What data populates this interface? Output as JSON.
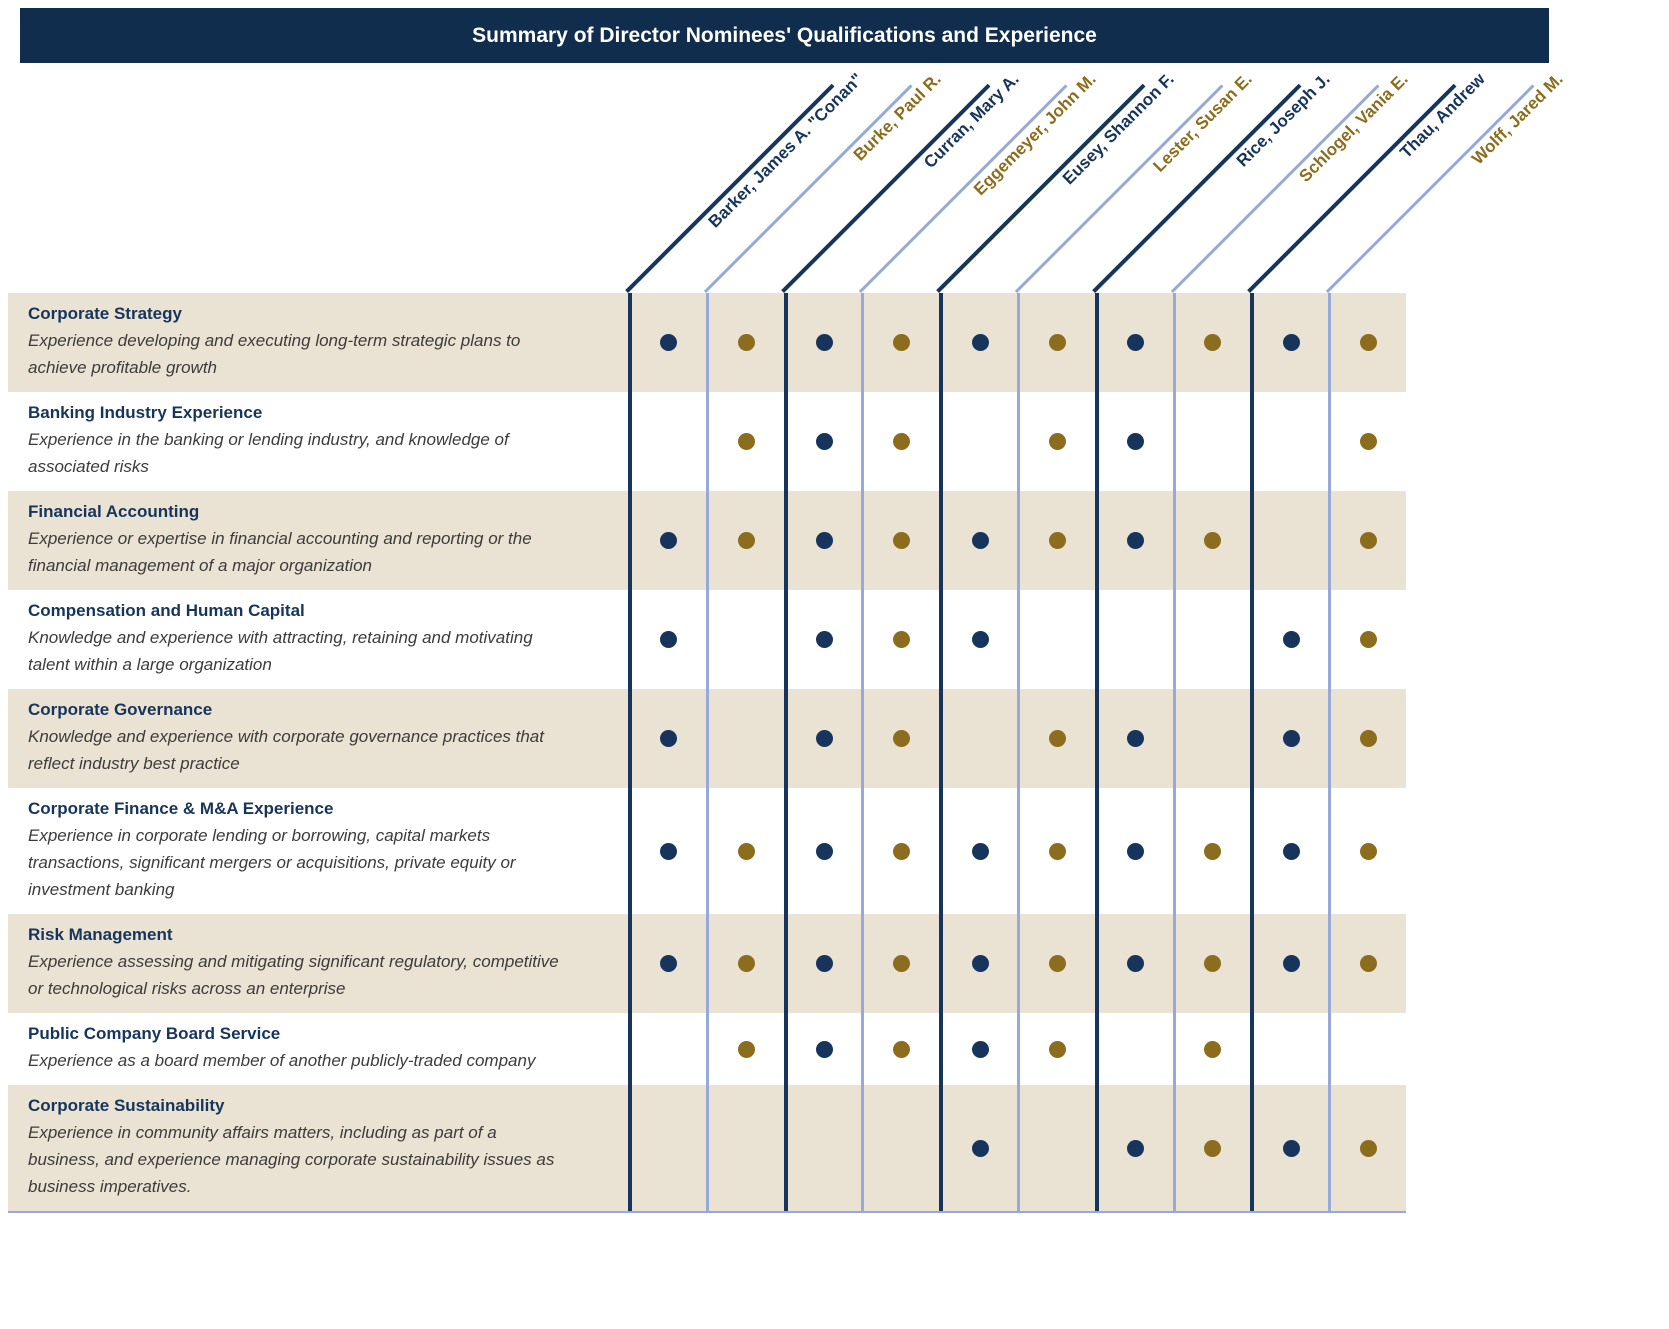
{
  "title": "Summary of Director Nominees' Qualifications and Experience",
  "colors": {
    "title_bg": "#112d4e",
    "title_text": "#ffffff",
    "navy": "#17355c",
    "gold": "#8c6d1d",
    "light_blue": "#96a9d8",
    "beige": "#eae2d2",
    "desc_text": "#3c3c3c"
  },
  "nominees": [
    {
      "name": "Barker, James A. \"Conan\"",
      "color": "navy"
    },
    {
      "name": "Burke, Paul R.",
      "color": "gold"
    },
    {
      "name": "Curran, Mary A.",
      "color": "navy"
    },
    {
      "name": "Eggemeyer, John M.",
      "color": "gold"
    },
    {
      "name": "Eusey, Shannon F.",
      "color": "navy"
    },
    {
      "name": "Lester, Susan E.",
      "color": "gold"
    },
    {
      "name": "Rice, Joseph J.",
      "color": "navy"
    },
    {
      "name": "Schlogel, Vania E.",
      "color": "gold"
    },
    {
      "name": "Thau, Andrew",
      "color": "navy"
    },
    {
      "name": "Wolff, Jared M.",
      "color": "gold"
    }
  ],
  "rows": [
    {
      "title": "Corporate Strategy",
      "description": "Experience developing and executing long-term strategic plans to achieve profitable growth",
      "marks": [
        1,
        1,
        1,
        1,
        1,
        1,
        1,
        1,
        1,
        1
      ]
    },
    {
      "title": "Banking Industry Experience",
      "description": "Experience in the banking or lending industry, and knowledge of associated risks",
      "marks": [
        0,
        1,
        1,
        1,
        0,
        1,
        1,
        0,
        0,
        1
      ]
    },
    {
      "title": "Financial Accounting",
      "description": "Experience or expertise in financial accounting and reporting or the financial management of a major organization",
      "marks": [
        1,
        1,
        1,
        1,
        1,
        1,
        1,
        1,
        0,
        1
      ]
    },
    {
      "title": "Compensation and Human Capital",
      "description": "Knowledge and experience with attracting, retaining and motivating talent within a large organization",
      "marks": [
        1,
        0,
        1,
        1,
        1,
        0,
        0,
        0,
        1,
        1
      ]
    },
    {
      "title": "Corporate Governance",
      "description": "Knowledge and experience with corporate governance practices that reflect industry best practice",
      "marks": [
        1,
        0,
        1,
        1,
        0,
        1,
        1,
        0,
        1,
        1
      ]
    },
    {
      "title": "Corporate Finance & M&A Experience",
      "description": "Experience in corporate lending or borrowing, capital markets transactions, significant mergers or acquisitions, private equity or investment banking",
      "marks": [
        1,
        1,
        1,
        1,
        1,
        1,
        1,
        1,
        1,
        1
      ]
    },
    {
      "title": "Risk Management",
      "description": "Experience assessing and mitigating significant regulatory, competitive or technological risks across an enterprise",
      "marks": [
        1,
        1,
        1,
        1,
        1,
        1,
        1,
        1,
        1,
        1
      ]
    },
    {
      "title": "Public Company Board Service",
      "description": "Experience as a board member of another publicly-traded company",
      "marks": [
        0,
        1,
        1,
        1,
        1,
        1,
        0,
        1,
        0,
        0
      ]
    },
    {
      "title": "Corporate Sustainability",
      "description": "Experience in community affairs matters, including as part of a business, and experience managing corporate sustainability issues as business imperatives.",
      "marks": [
        0,
        0,
        0,
        0,
        1,
        0,
        1,
        1,
        1,
        1
      ]
    }
  ]
}
